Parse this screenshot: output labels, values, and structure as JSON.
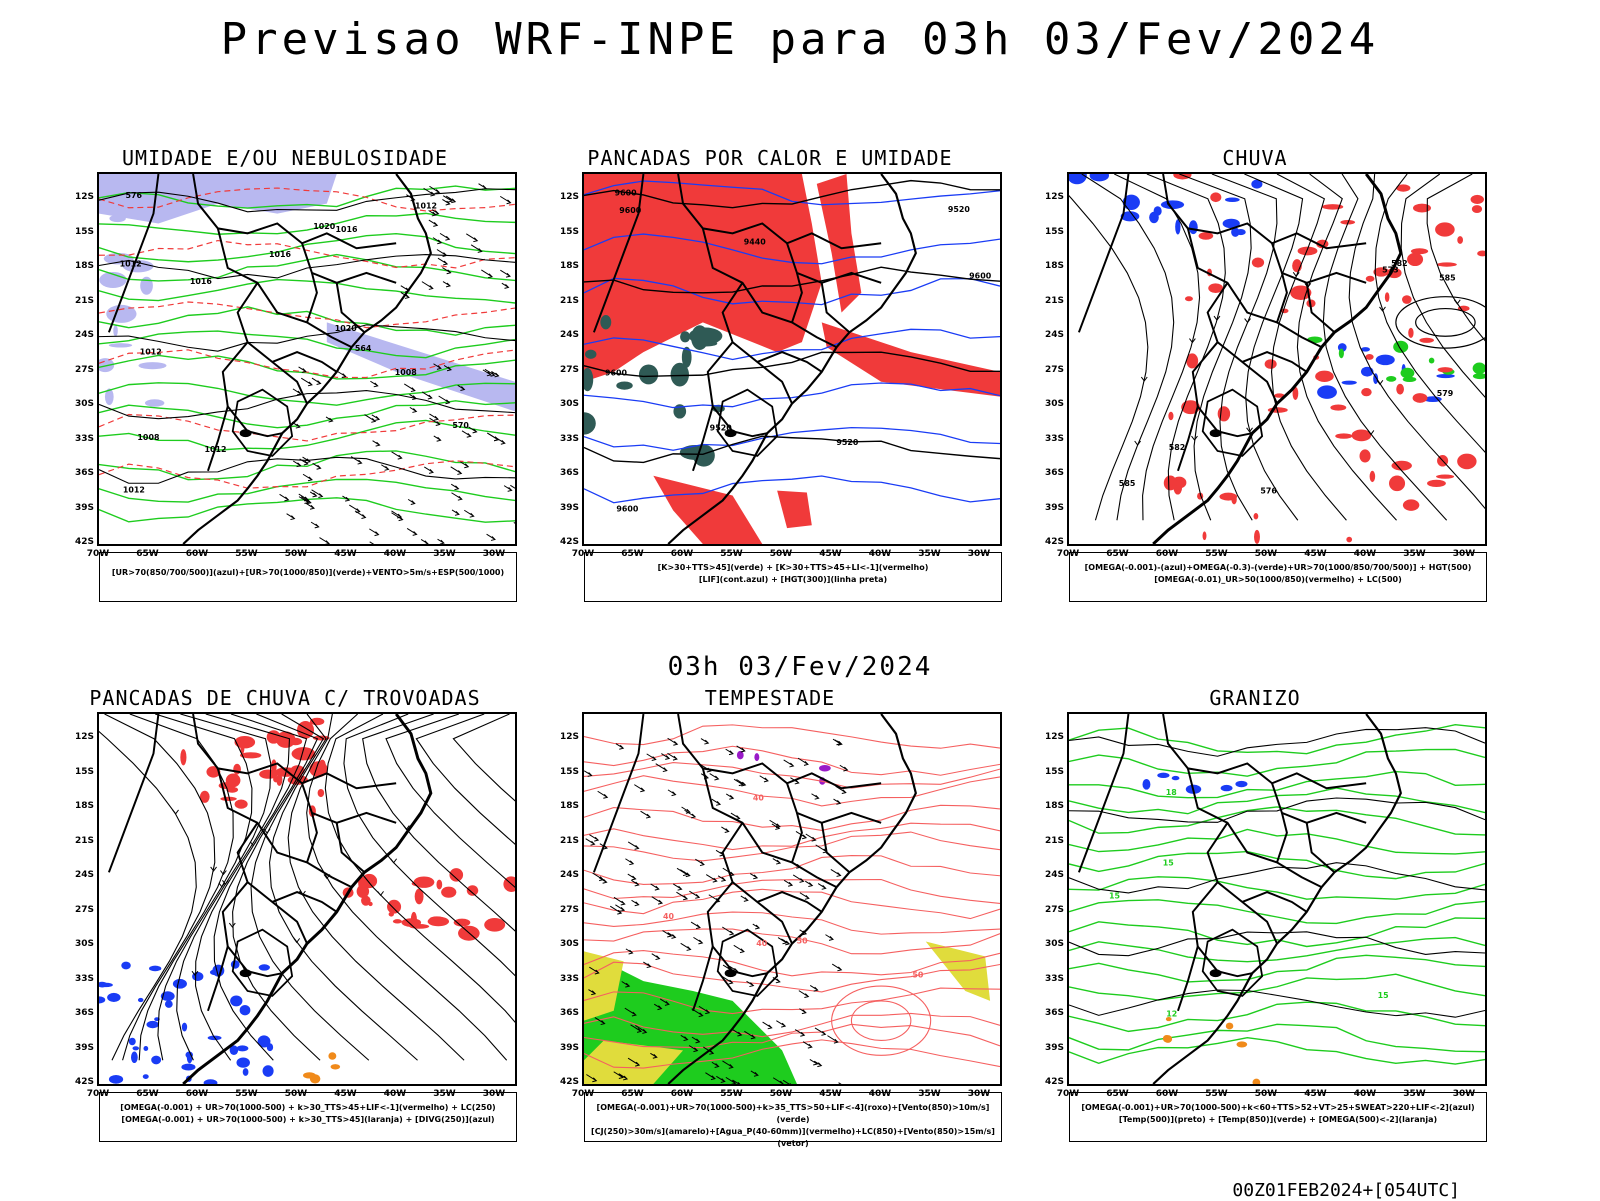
{
  "title": "Previsao WRF-INPE  para 03h 03/Fev/2024",
  "subtitle": "03h 03/Fev/2024",
  "footer": "00Z01FEB2024+[054UTC]",
  "lat_labels": [
    "12S",
    "15S",
    "18S",
    "21S",
    "24S",
    "27S",
    "30S",
    "33S",
    "36S",
    "39S",
    "42S"
  ],
  "lon_labels": [
    "70W",
    "65W",
    "60W",
    "55W",
    "50W",
    "45W",
    "40W",
    "35W",
    "30W"
  ],
  "panels": [
    {
      "title": "UMIDADE E/OU NEBULOSIDADE",
      "legend": [
        "[UR>70(850/700/500)](azul)+[UR>70(1000/850)](verde)+VENTO>5m/s+ESP(500/1000)"
      ],
      "contour_labels": [
        "1012",
        "1012",
        "1012",
        "1016",
        "1016",
        "1008",
        "1012",
        "1020",
        "1016",
        "1020",
        "1008",
        "1012",
        "570",
        "576",
        "564"
      ]
    },
    {
      "title": "PANCADAS POR CALOR E UMIDADE",
      "legend": [
        "[K>30+TTS>45](verde)  +  [K>30+TTS>45+LI<-1](vermelho)",
        "[LIF](cont.azul)  +  [HGT(300)](linha preta)"
      ],
      "contour_labels": [
        "9600",
        "9600",
        "9600",
        "9520",
        "9600",
        "9520",
        "9440",
        "9520",
        "9600"
      ]
    },
    {
      "title": "CHUVA",
      "legend": [
        "[OMEGA(-0.001)-(azul)+OMEGA(-0.3)-(verde)+UR>70(1000/850/700/500)]  +  HGT(500)",
        "[OMEGA(-0.01)_UR>50(1000/850)(vermelho)  +  LC(500)"
      ],
      "contour_labels": [
        "585",
        "582",
        "579",
        "576",
        "573",
        "582",
        "585"
      ]
    },
    {
      "title": "PANCADAS DE CHUVA C/ TROVOADAS",
      "legend": [
        "[OMEGA(-0.001)  +  UR>70(1000-500)  +  k>30_TTS>45+LIF<-1](vermelho)  +  LC(250)",
        "[OMEGA(-0.001)  +  UR>70(1000-500)  +  k>30_TTS>45](laranja)  +  [DIVG(250)](azul)"
      ],
      "contour_labels": []
    },
    {
      "title": "TEMPESTADE",
      "legend": [
        "[OMEGA(-0.001)+UR>70(1000-500)+k>35_TTS>50+LIF<-4](roxo)+[Vento(850)>10m/s](verde)",
        "[CJ(250)>30m/s](amarelo)+[Agua_P(40-60mm)](vermelho)+LC(850)+[Vento(850)>15m/s](vetor)"
      ],
      "contour_labels": [
        "40",
        "40",
        "50",
        "50",
        "40"
      ]
    },
    {
      "title": "GRANIZO",
      "legend": [
        "[OMEGA(-0.001)+UR>70(1000-500)+k<60+TTS>52+VT>25+SWEAT>220+LIF<-2](azul)",
        "[Temp(500)](preto)  +  [Temp(850)](verde)  +  [OMEGA(500)<-2](laranja)"
      ],
      "contour_labels": [
        "15",
        "12",
        "15",
        "15",
        "18"
      ]
    }
  ],
  "colors": {
    "red": "#f03a3a",
    "green": "#1ecc1e",
    "blue": "#1a3cf5",
    "lavender": "#b8b8f0",
    "purple": "#9a1ac8",
    "yellow": "#e0dc3c",
    "orange": "#f08a1a",
    "darkgreen": "#2f5a55",
    "salmon": "#f56060"
  }
}
